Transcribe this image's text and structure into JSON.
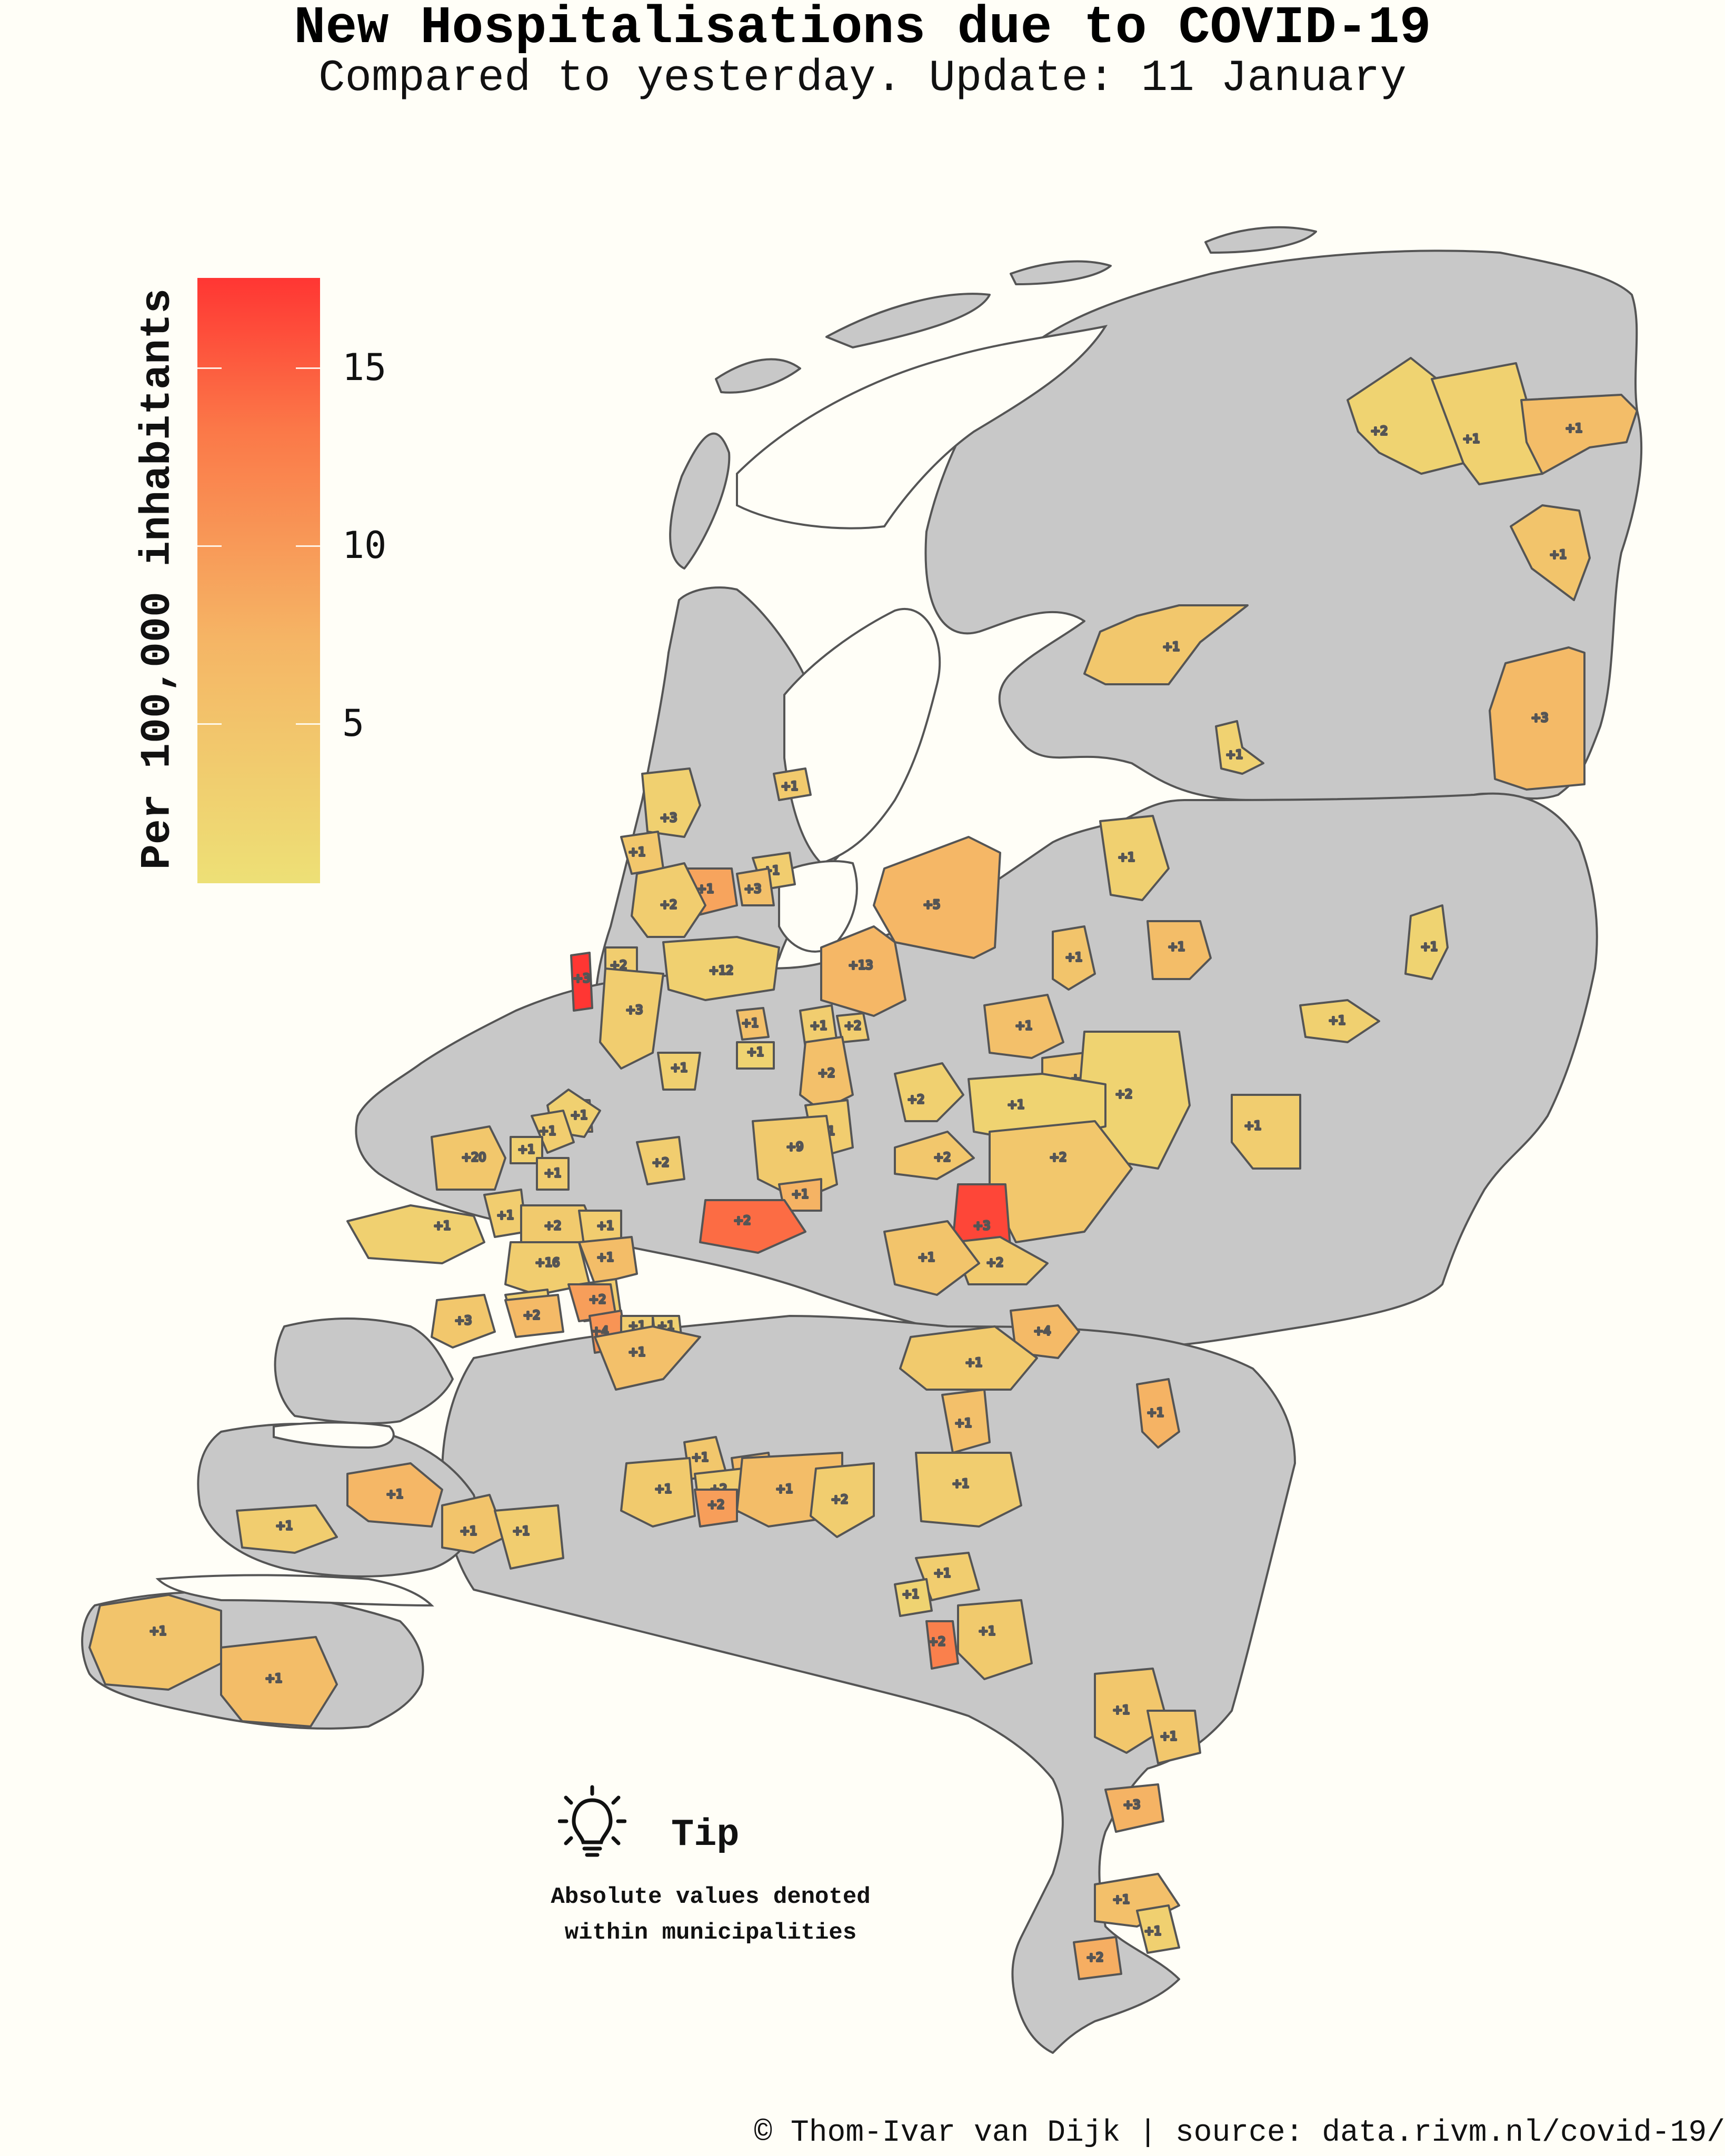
{
  "title": "New Hospitalisations due to COVID-19",
  "subtitle": "Compared to yesterday. Update: 11 January",
  "legend": {
    "title": "Per 100,000 inhabitants",
    "min": 0,
    "max": 17,
    "ticks": [
      {
        "label": "15",
        "value": 15
      },
      {
        "label": "10",
        "value": 10
      },
      {
        "label": "5",
        "value": 5
      }
    ],
    "color_low": "#ede076",
    "color_high": "#ff3633"
  },
  "tip": {
    "icon": "lightbulb-icon",
    "title": "Tip",
    "line1": "Absolute values denoted",
    "line2": "within municipalities"
  },
  "credit": "© Thom-Ivar van Dijk | source: data.rivm.nl/covid-19/",
  "colors": {
    "no_data": "#c8c8c8",
    "border": "#555555",
    "water": "#fffef7"
  },
  "municipalities": [
    {
      "label": "+2",
      "per100k": 2.0
    },
    {
      "label": "+1",
      "per100k": 2.3
    },
    {
      "label": "+1",
      "per100k": 5.5
    },
    {
      "label": "+1",
      "per100k": 4.5
    },
    {
      "label": "+1",
      "per100k": 4.0
    },
    {
      "label": "+3",
      "per100k": 6.0
    },
    {
      "label": "+1",
      "per100k": 2.2
    },
    {
      "label": "+1",
      "per100k": 3.5
    },
    {
      "label": "+3",
      "per100k": 2.5
    },
    {
      "label": "+1",
      "per100k": 3.0
    },
    {
      "label": "+1",
      "per100k": 4.0
    },
    {
      "label": "+1",
      "per100k": 8.5
    },
    {
      "label": "+3",
      "per100k": 5.0
    },
    {
      "label": "+1",
      "per100k": 2.5
    },
    {
      "label": "+2",
      "per100k": 3.0
    },
    {
      "label": "+5",
      "per100k": 6.5
    },
    {
      "label": "+1",
      "per100k": 5.5
    },
    {
      "label": "+1",
      "per100k": 2.0
    },
    {
      "label": "+13",
      "per100k": 6.5
    },
    {
      "label": "+3",
      "per100k": 17.0
    },
    {
      "label": "+2",
      "per100k": 3.0
    },
    {
      "label": "+12",
      "per100k": 2.5
    },
    {
      "label": "+3",
      "per100k": 3.0
    },
    {
      "label": "+1",
      "per100k": 4.5
    },
    {
      "label": "+1",
      "per100k": 5.0
    },
    {
      "label": "+1",
      "per100k": 2.5
    },
    {
      "label": "+1",
      "per100k": 5.0
    },
    {
      "label": "+1",
      "per100k": 2.0
    },
    {
      "label": "+1",
      "per100k": 3.0
    },
    {
      "label": "+2",
      "per100k": 3.0
    },
    {
      "label": "+1",
      "per100k": 4.0
    },
    {
      "label": "+2",
      "per100k": 2.0
    },
    {
      "label": "+1",
      "per100k": 2.5
    },
    {
      "label": "+2",
      "per100k": 6.0
    },
    {
      "label": "+1",
      "per100k": 2.5
    },
    {
      "label": "+2",
      "per100k": 5.0
    },
    {
      "label": "+2",
      "per100k": 2.5
    },
    {
      "label": "+1",
      "per100k": 2.0
    },
    {
      "label": "+1",
      "per100k": 3.0
    },
    {
      "label": "+1",
      "per100k": 3.0
    },
    {
      "label": "+1",
      "per100k": 3.0
    },
    {
      "label": "+2",
      "per100k": 4.0
    },
    {
      "label": "+20",
      "per100k": 4.0
    },
    {
      "label": "+1",
      "per100k": 2.5
    },
    {
      "label": "+1",
      "per100k": 3.0
    },
    {
      "label": "+1",
      "per100k": 3.0
    },
    {
      "label": "+9",
      "per100k": 3.5
    },
    {
      "label": "+1",
      "per100k": 7.0
    },
    {
      "label": "+2",
      "per100k": 3.0
    },
    {
      "label": "+2",
      "per100k": 4.0
    },
    {
      "label": "+2",
      "per100k": 13.5
    },
    {
      "label": "+3",
      "per100k": 16.0
    },
    {
      "label": "+1",
      "per100k": 2.5
    },
    {
      "label": "+2",
      "per100k": 3.5
    },
    {
      "label": "+1",
      "per100k": 3.0
    },
    {
      "label": "+16",
      "per100k": 3.0
    },
    {
      "label": "+1",
      "per100k": 5.5
    },
    {
      "label": "+2",
      "per100k": 3.5
    },
    {
      "label": "+1",
      "per100k": 4.5
    },
    {
      "label": "+1",
      "per100k": 3.0
    },
    {
      "label": "+1",
      "per100k": 2.5
    },
    {
      "label": "+2",
      "per100k": 9.0
    },
    {
      "label": "+4",
      "per100k": 10.0
    },
    {
      "label": "+1",
      "per100k": 3.0
    },
    {
      "label": "+1",
      "per100k": 2.5
    },
    {
      "label": "+2",
      "per100k": 6.0
    },
    {
      "label": "+3",
      "per100k": 4.0
    },
    {
      "label": "+1",
      "per100k": 5.0
    },
    {
      "label": "+4",
      "per100k": 6.0
    },
    {
      "label": "+1",
      "per100k": 3.5
    },
    {
      "label": "+1",
      "per100k": 7.0
    },
    {
      "label": "+1",
      "per100k": 5.0
    },
    {
      "label": "+1",
      "per100k": 6.0
    },
    {
      "label": "+1",
      "per100k": 4.0
    },
    {
      "label": "+1",
      "per100k": 3.5
    },
    {
      "label": "+2",
      "per100k": 3.0
    },
    {
      "label": "+1",
      "per100k": 5.5
    },
    {
      "label": "+2",
      "per100k": 3.0
    },
    {
      "label": "+2",
      "per100k": 9.0
    },
    {
      "label": "+1",
      "per100k": 3.0
    },
    {
      "label": "+1",
      "per100k": 6.5
    },
    {
      "label": "+1",
      "per100k": 4.5
    },
    {
      "label": "+1",
      "per100k": 3.0
    },
    {
      "label": "+1",
      "per100k": 3.0
    },
    {
      "label": "+1",
      "per100k": 3.0
    },
    {
      "label": "+1",
      "per100k": 2.0
    },
    {
      "label": "+1",
      "per100k": 3.5
    },
    {
      "label": "+2",
      "per100k": 12.0
    },
    {
      "label": "+1",
      "per100k": 4.5
    },
    {
      "label": "+1",
      "per100k": 5.5
    },
    {
      "label": "+1",
      "per100k": 4.0
    },
    {
      "label": "+1",
      "per100k": 4.0
    },
    {
      "label": "+3",
      "per100k": 7.0
    },
    {
      "label": "+1",
      "per100k": 5.0
    },
    {
      "label": "+2",
      "per100k": 7.5
    },
    {
      "label": "+1",
      "per100k": 2.5
    },
    {
      "label": "+1",
      "per100k": 7.0
    }
  ]
}
